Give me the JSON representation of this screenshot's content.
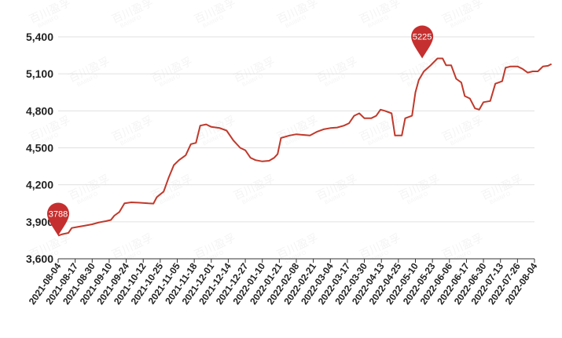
{
  "colors": {
    "line": "#c0392b",
    "pin": "#c62f2f",
    "grid": "#e0e0e0",
    "axis": "#333333",
    "text": "#222222"
  },
  "watermark": {
    "text": "百川盈孚",
    "sub": "BAIINFO"
  },
  "chart_data": {
    "type": "line",
    "title": "",
    "xlabel": "",
    "ylabel": "",
    "ylim": [
      3600,
      5400
    ],
    "yticks": [
      3600,
      3900,
      4200,
      4500,
      4800,
      5100,
      5400
    ],
    "ytick_labels": [
      "3,600",
      "3,900",
      "4,200",
      "4,500",
      "4,800",
      "5,100",
      "5,400"
    ],
    "xtick_labels": [
      "2021-08-04",
      "2021-08-17",
      "2021-08-30",
      "2021-09-10",
      "2021-09-24",
      "2021-10-12",
      "2021-10-25",
      "2021-11-05",
      "2021-11-18",
      "2021-12-01",
      "2021-12-14",
      "2021-12-27",
      "2022-01-10",
      "2022-01-21",
      "2022-02-08",
      "2022-02-21",
      "2022-03-04",
      "2022-03-17",
      "2022-03-30",
      "2022-04-13",
      "2022-04-25",
      "2022-05-10",
      "2022-05-23",
      "2022-06-06",
      "2022-06-17",
      "2022-06-30",
      "2022-07-13",
      "2022-07-26",
      "2022-08-04"
    ],
    "grid": true,
    "annotations": [
      {
        "label": "3788",
        "x_index": 0,
        "y": 3788,
        "kind": "min"
      },
      {
        "label": "5225",
        "x_index": 21.4,
        "y": 5225,
        "kind": "max"
      }
    ],
    "series": [
      {
        "points": [
          [
            0,
            3788
          ],
          [
            0.25,
            3800
          ],
          [
            0.6,
            3810
          ],
          [
            0.8,
            3850
          ],
          [
            1.2,
            3860
          ],
          [
            1.6,
            3870
          ],
          [
            2.0,
            3880
          ],
          [
            2.4,
            3895
          ],
          [
            2.8,
            3905
          ],
          [
            3.1,
            3915
          ],
          [
            3.3,
            3950
          ],
          [
            3.6,
            3980
          ],
          [
            3.9,
            4050
          ],
          [
            4.3,
            4058
          ],
          [
            4.8,
            4055
          ],
          [
            5.3,
            4050
          ],
          [
            5.6,
            4048
          ],
          [
            5.8,
            4100
          ],
          [
            6.2,
            4145
          ],
          [
            6.5,
            4260
          ],
          [
            6.8,
            4360
          ],
          [
            7.1,
            4400
          ],
          [
            7.5,
            4440
          ],
          [
            7.8,
            4530
          ],
          [
            8.1,
            4540
          ],
          [
            8.35,
            4680
          ],
          [
            8.7,
            4690
          ],
          [
            9.0,
            4670
          ],
          [
            9.5,
            4660
          ],
          [
            9.9,
            4640
          ],
          [
            10.3,
            4560
          ],
          [
            10.7,
            4500
          ],
          [
            11.0,
            4480
          ],
          [
            11.3,
            4420
          ],
          [
            11.6,
            4400
          ],
          [
            12.0,
            4390
          ],
          [
            12.4,
            4395
          ],
          [
            12.7,
            4420
          ],
          [
            12.9,
            4450
          ],
          [
            13.1,
            4580
          ],
          [
            13.6,
            4600
          ],
          [
            14.0,
            4610
          ],
          [
            14.4,
            4605
          ],
          [
            14.8,
            4600
          ],
          [
            15.2,
            4630
          ],
          [
            15.6,
            4650
          ],
          [
            16.0,
            4660
          ],
          [
            16.4,
            4665
          ],
          [
            16.8,
            4680
          ],
          [
            17.1,
            4700
          ],
          [
            17.4,
            4760
          ],
          [
            17.7,
            4780
          ],
          [
            18.0,
            4740
          ],
          [
            18.4,
            4740
          ],
          [
            18.7,
            4760
          ],
          [
            18.95,
            4810
          ],
          [
            19.2,
            4800
          ],
          [
            19.6,
            4780
          ],
          [
            19.8,
            4600
          ],
          [
            20.2,
            4600
          ],
          [
            20.4,
            4740
          ],
          [
            20.8,
            4760
          ],
          [
            21.0,
            4950
          ],
          [
            21.2,
            5050
          ],
          [
            21.5,
            5120
          ],
          [
            21.9,
            5170
          ],
          [
            22.3,
            5225
          ],
          [
            22.6,
            5225
          ],
          [
            22.8,
            5170
          ],
          [
            23.1,
            5170
          ],
          [
            23.4,
            5060
          ],
          [
            23.7,
            5030
          ],
          [
            23.9,
            4920
          ],
          [
            24.2,
            4900
          ],
          [
            24.5,
            4820
          ],
          [
            24.75,
            4810
          ],
          [
            25.0,
            4870
          ],
          [
            25.4,
            4880
          ],
          [
            25.7,
            5020
          ],
          [
            26.1,
            5040
          ],
          [
            26.3,
            5150
          ],
          [
            26.6,
            5160
          ],
          [
            27.0,
            5160
          ],
          [
            27.3,
            5140
          ],
          [
            27.6,
            5110
          ],
          [
            27.9,
            5120
          ],
          [
            28.2,
            5120
          ],
          [
            28.5,
            5160
          ],
          [
            28.8,
            5165
          ],
          [
            29.0,
            5180
          ]
        ]
      }
    ]
  }
}
